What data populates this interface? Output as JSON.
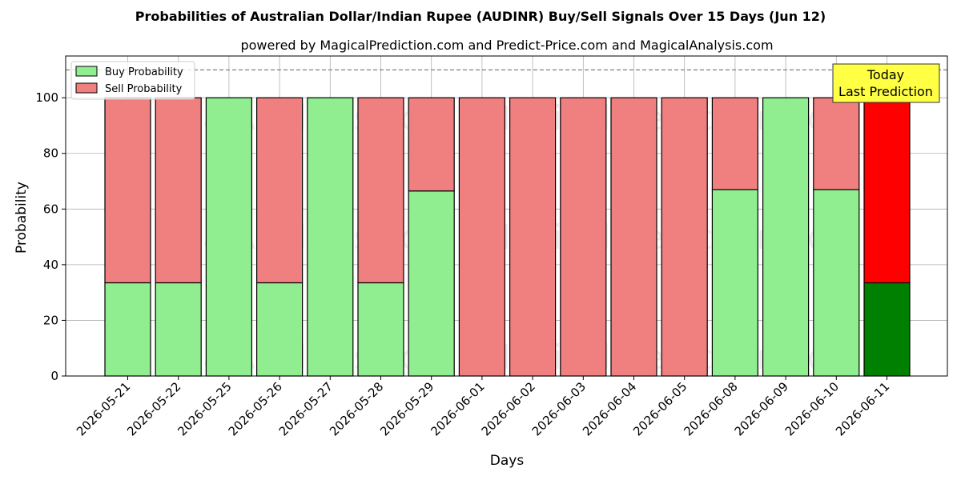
{
  "chart_data": {
    "type": "bar",
    "stacked": true,
    "title": "Probabilities of Australian Dollar/Indian Rupee (AUDINR) Buy/Sell Signals Over 15 Days (Jun 12)",
    "subtitle": "powered by MagicalPrediction.com and Predict-Price.com and MagicalAnalysis.com",
    "xlabel": "Days",
    "ylabel": "Probability",
    "ylim": [
      0,
      115
    ],
    "yticks": [
      0,
      20,
      40,
      60,
      80,
      100
    ],
    "reference_line": 110,
    "grid": true,
    "legend_position": "top-left",
    "categories": [
      "2026-05-21",
      "2026-05-22",
      "2026-05-25",
      "2026-05-26",
      "2026-05-27",
      "2026-05-28",
      "2026-05-29",
      "2026-06-01",
      "2026-06-02",
      "2026-06-03",
      "2026-06-04",
      "2026-06-05",
      "2026-06-08",
      "2026-06-09",
      "2026-06-10",
      "2026-06-11"
    ],
    "series": [
      {
        "name": "Buy Probability",
        "color": "#90EE90",
        "values": [
          33.5,
          33.5,
          100,
          33.5,
          100,
          33.5,
          66.5,
          0,
          0,
          0,
          0,
          0,
          67,
          100,
          67,
          33.5
        ]
      },
      {
        "name": "Sell Probability",
        "color": "#F08080",
        "values": [
          66.5,
          66.5,
          0,
          66.5,
          0,
          66.5,
          33.5,
          100,
          100,
          100,
          100,
          100,
          33,
          0,
          33,
          66.5
        ]
      }
    ],
    "highlight": {
      "index": 15,
      "buy_color": "#008000",
      "sell_color": "#FF0000"
    },
    "annotation": {
      "lines": [
        "Today",
        "Last Prediction"
      ],
      "background": "#FFFF44"
    },
    "watermarks": [
      "MagicalAnalysis.com",
      "MagicalPrediction.com"
    ]
  }
}
